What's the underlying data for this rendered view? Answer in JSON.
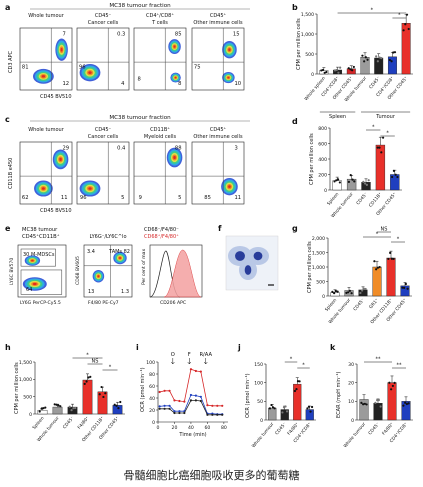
{
  "caption": "骨髓细胞比癌细胞吸收更多的葡萄糖",
  "panels": {
    "a": {
      "letter": "a",
      "header": "MC38 tumour fraction",
      "plots": [
        {
          "title": "Whole tumour",
          "nums": [
            "7",
            "81",
            "12"
          ]
        },
        {
          "title": "CD45⁻ Cancer cells",
          "nums": [
            "0.3",
            "96",
            "4"
          ]
        },
        {
          "title": "CD4⁺/CD8⁺ T cells",
          "nums": [
            "85",
            "8",
            "8"
          ]
        },
        {
          "title": "CD45⁺ Other immune cells",
          "nums": [
            "15",
            "75",
            "10"
          ]
        }
      ],
      "ylabel": "CD3 APC",
      "xlabel": "CD45 BV510"
    },
    "c": {
      "letter": "c",
      "header": "MC38 tumour fraction",
      "plots": [
        {
          "title": "Whole tumour",
          "nums": [
            "29",
            "11",
            "62"
          ]
        },
        {
          "title": "CD45⁻ Cancer cells",
          "nums": [
            "0.4",
            "5",
            "96"
          ]
        },
        {
          "title": "CD11B⁺ Myeloid cells",
          "nums": [
            "88",
            "5",
            "9"
          ]
        },
        {
          "title": "CD45⁺ Other immune cells",
          "nums": [
            "3",
            "11",
            "85"
          ]
        }
      ],
      "ylabel": "CD11B e450",
      "xlabel": "CD45 BV510"
    },
    "e": {
      "letter": "e",
      "header1": "MC38 tumour",
      "header2": "CD45⁺CD11B⁺",
      "gate_mdsc": "30 M-MDSCs",
      "gate_other": "64",
      "ylabel1": "LY6C BV570",
      "xlabel1": "LY6G PerCP-Cy5.5",
      "header_mid": "LY6G⁻/LY6C^lo",
      "gate_tam": "TAMs 82",
      "num_34": "3.4",
      "num_13": "13",
      "num_13b": "1.3",
      "ylabel2": "CD68 BV605",
      "xlabel2": "F4/80 PE-Cy7",
      "legend1": "CD68⁻/F4/80⁻",
      "legend2": "CD68⁺/F4/80⁺",
      "ylabel3": "Per cent of max",
      "xlabel3": "CD206 APC"
    },
    "f": {
      "letter": "f"
    }
  },
  "chart_data": [
    {
      "panel": "b",
      "type": "bar",
      "ylabel": "CPM per million cells",
      "yticks": [
        "0",
        "500",
        "1,000",
        "1,500"
      ],
      "ylim": [
        0,
        1500
      ],
      "categories": [
        "Whole spleen",
        "CD4⁺/CD8⁺",
        "Other CD45⁺",
        "Whole tumour",
        "CD45⁻",
        "CD4⁺/CD8⁺",
        "Other CD45⁺"
      ],
      "values": [
        90,
        100,
        130,
        420,
        400,
        430,
        1270
      ],
      "colors": [
        "#ffffff",
        "#222222",
        "#d62728",
        "#9b9b9b",
        "#222222",
        "#1f3fbf",
        "#e8302a"
      ],
      "groups": [
        "Spleen",
        "Tumour"
      ],
      "significance": [
        "*",
        "*"
      ]
    },
    {
      "panel": "d",
      "type": "bar",
      "ylabel": "CPM per million cells",
      "yticks": [
        "0",
        "200",
        "400",
        "600",
        "800"
      ],
      "ylim": [
        0,
        800
      ],
      "categories": [
        "Spleen",
        "Whole tumour",
        "CD45⁻",
        "CD11B⁺",
        "Other CD45⁺"
      ],
      "values": [
        120,
        140,
        100,
        580,
        200
      ],
      "colors": [
        "#ffffff",
        "#9b9b9b",
        "#222222",
        "#e8302a",
        "#1f3fbf"
      ],
      "significance": [
        "*",
        "*"
      ]
    },
    {
      "panel": "g",
      "type": "bar",
      "ylabel": "CPM per million cells",
      "yticks": [
        "0",
        "500",
        "1,000",
        "1,500",
        "2,000"
      ],
      "ylim": [
        0,
        2000
      ],
      "categories": [
        "Spleen",
        "Whole tumour",
        "CD45⁻",
        "GR1⁺",
        "Other CD11B⁺",
        "Other CD45⁺"
      ],
      "values": [
        120,
        190,
        210,
        1000,
        1310,
        350
      ],
      "colors": [
        "#ffffff",
        "#9b9b9b",
        "#222222",
        "#f08c28",
        "#e8302a",
        "#1f3fbf"
      ],
      "significance": [
        "*",
        "NS",
        "*"
      ]
    },
    {
      "panel": "h",
      "type": "bar",
      "ylabel": "CPM per million cells",
      "yticks": [
        "0",
        "500",
        "1,000",
        "1,500"
      ],
      "ylim": [
        0,
        1500
      ],
      "categories": [
        "Spleen",
        "Whole tumour",
        "CD45⁻",
        "F4/80⁺",
        "Other CD11B⁺",
        "Other CD45⁺"
      ],
      "values": [
        110,
        200,
        200,
        980,
        640,
        250
      ],
      "colors": [
        "#ffffff",
        "#9b9b9b",
        "#222222",
        "#e8302a",
        "#e8302a",
        "#1f3fbf"
      ],
      "significance": [
        "*",
        "NS",
        "*"
      ]
    },
    {
      "panel": "i",
      "type": "line",
      "ylabel": "OCR (pmol min⁻¹)",
      "xlabel": "Time (min)",
      "yticks": [
        "0",
        "20",
        "40",
        "60",
        "80",
        "100"
      ],
      "ylim": [
        0,
        100
      ],
      "xticks": [
        "0",
        "20",
        "40",
        "60",
        "80"
      ],
      "xlim": [
        0,
        85
      ],
      "injections": [
        "O",
        "F",
        "R/AA"
      ],
      "injection_times": [
        18,
        38,
        58
      ],
      "series": [
        {
          "color": "#d62728",
          "x": [
            2,
            8,
            14,
            20,
            26,
            32,
            40,
            46,
            52,
            60,
            66,
            72,
            78
          ],
          "y": [
            50,
            52,
            52,
            36,
            35,
            34,
            88,
            85,
            84,
            28,
            27,
            27,
            27
          ]
        },
        {
          "color": "#1f3fbf",
          "x": [
            2,
            8,
            14,
            20,
            26,
            32,
            40,
            46,
            52,
            60,
            66,
            72,
            78
          ],
          "y": [
            26,
            27,
            27,
            18,
            18,
            18,
            45,
            44,
            42,
            14,
            14,
            13,
            13
          ]
        },
        {
          "color": "#222222",
          "x": [
            2,
            8,
            14,
            20,
            26,
            32,
            40,
            46,
            52,
            60,
            66,
            72,
            78
          ],
          "y": [
            22,
            22,
            22,
            15,
            15,
            15,
            36,
            36,
            35,
            12,
            12,
            12,
            12
          ]
        }
      ]
    },
    {
      "panel": "j",
      "type": "bar",
      "ylabel": "OCR (pmol min⁻¹)",
      "yticks": [
        "0",
        "50",
        "100",
        "150"
      ],
      "ylim": [
        0,
        150
      ],
      "categories": [
        "Whole tumour",
        "CD45⁻",
        "F4/80⁺",
        "CD4⁺/CD8⁺"
      ],
      "values": [
        32,
        28,
        96,
        28
      ],
      "colors": [
        "#9b9b9b",
        "#222222",
        "#e8302a",
        "#1f3fbf"
      ],
      "significance": [
        "*",
        "*"
      ]
    },
    {
      "panel": "k",
      "type": "bar",
      "ylabel": "ECAR (mpH min⁻¹)",
      "yticks": [
        "0",
        "10",
        "20",
        "30"
      ],
      "ylim": [
        0,
        30
      ],
      "categories": [
        "Whole tumour",
        "CD45⁻",
        "F4/80⁺",
        "CD4⁺/CD8⁺"
      ],
      "values": [
        11,
        9,
        20,
        10
      ],
      "colors": [
        "#9b9b9b",
        "#222222",
        "#e8302a",
        "#1f3fbf"
      ],
      "significance": [
        "**",
        "**"
      ]
    }
  ]
}
